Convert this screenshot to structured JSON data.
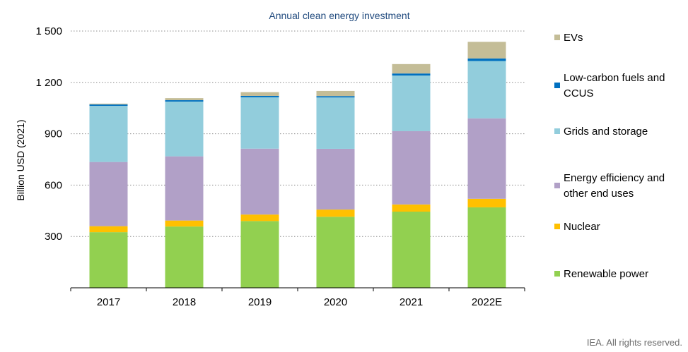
{
  "chart_data": {
    "type": "bar",
    "stacked": true,
    "title": "Annual clean energy investment",
    "ylabel": "Billion USD (2021)",
    "xlabel": "",
    "categories": [
      "2017",
      "2018",
      "2019",
      "2020",
      "2021",
      "2022E"
    ],
    "ylim": [
      0,
      1500
    ],
    "yticks": [
      300,
      600,
      900,
      1200,
      1500
    ],
    "ytick_labels": [
      "300",
      "600",
      "900",
      "1 200",
      "1 500"
    ],
    "grid": true,
    "legend_position": "right",
    "series": [
      {
        "name": "Renewable power",
        "color": "#92d050",
        "values": [
          325,
          358,
          390,
          415,
          445,
          470
        ]
      },
      {
        "name": "Nuclear",
        "color": "#ffc000",
        "values": [
          35,
          35,
          38,
          42,
          42,
          50
        ]
      },
      {
        "name": "Energy efficiency and other end uses",
        "color": "#b1a0c7",
        "values": [
          375,
          375,
          385,
          355,
          428,
          470
        ]
      },
      {
        "name": "Grids and storage",
        "color": "#92cddc",
        "values": [
          328,
          320,
          300,
          300,
          325,
          335
        ]
      },
      {
        "name": "Low-carbon fuels and CCUS",
        "color": "#0070c0",
        "values": [
          8,
          8,
          8,
          8,
          12,
          15
        ]
      },
      {
        "name": "EVs",
        "color": "#c4bd97",
        "values": [
          5,
          12,
          22,
          30,
          55,
          97
        ]
      }
    ],
    "legend_lines": [
      [
        "EVs"
      ],
      [
        "Low-carbon fuels and",
        "CCUS"
      ],
      [
        "Grids and storage"
      ],
      [
        "Energy efficiency and",
        "other end uses"
      ],
      [
        "Nuclear"
      ],
      [
        "Renewable power"
      ]
    ]
  },
  "credit": "IEA. All rights reserved."
}
